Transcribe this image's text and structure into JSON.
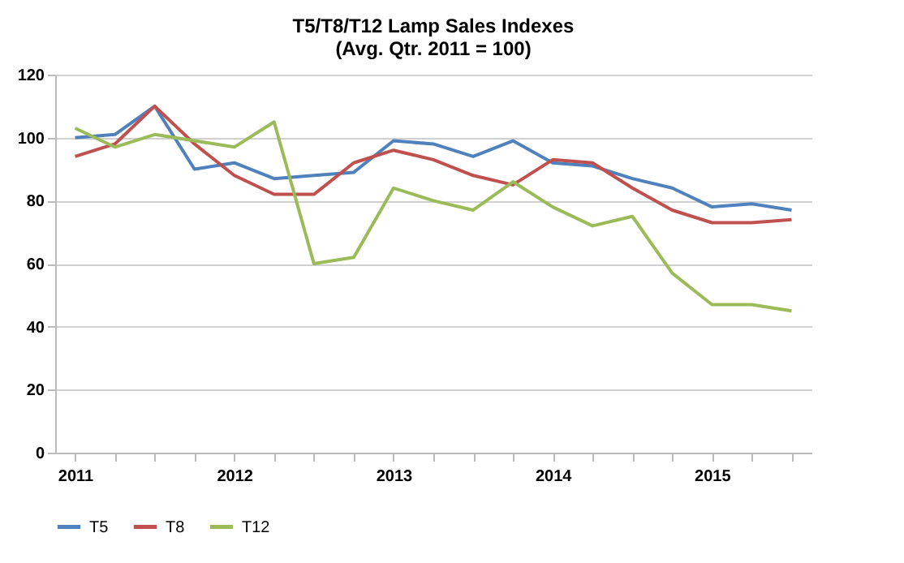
{
  "chart_data": {
    "type": "line",
    "title": [
      "T5/T8/T12 Lamp Sales Indexes",
      "(Avg. Qtr. 2011 = 100)"
    ],
    "categories": [
      "2011",
      null,
      null,
      null,
      "2012",
      null,
      null,
      null,
      "2013",
      null,
      null,
      null,
      "2014",
      null,
      null,
      null,
      "2015",
      null,
      null
    ],
    "series": [
      {
        "name": "T5",
        "color": "#4f81bd",
        "values": [
          100,
          101,
          110,
          90,
          92,
          87,
          88,
          89,
          99,
          98,
          94,
          99,
          92,
          91,
          87,
          84,
          78,
          79,
          77
        ]
      },
      {
        "name": "T8",
        "color": "#c0504d",
        "values": [
          94,
          98,
          110,
          98,
          88,
          82,
          82,
          92,
          96,
          93,
          88,
          85,
          93,
          92,
          84,
          77,
          73,
          73,
          74
        ]
      },
      {
        "name": "T12",
        "color": "#9bbb59",
        "values": [
          103,
          97,
          101,
          99,
          97,
          105,
          60,
          62,
          84,
          80,
          77,
          86,
          78,
          72,
          75,
          57,
          47,
          47,
          45
        ]
      }
    ],
    "ylim": [
      0,
      120
    ],
    "yticks": [
      0,
      20,
      40,
      60,
      80,
      100,
      120
    ],
    "grid": "y",
    "legend": "bottom",
    "marker": "none",
    "line_style": "solid"
  }
}
